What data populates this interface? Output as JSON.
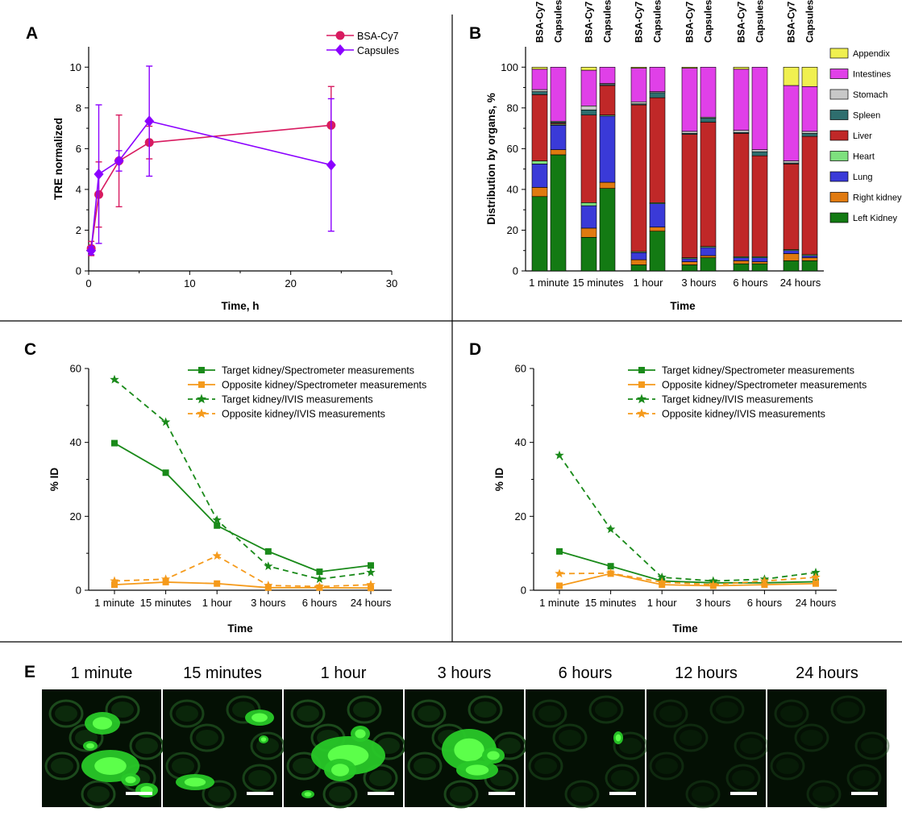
{
  "panel_letters": {
    "a": "A",
    "b": "B",
    "c": "C",
    "d": "D",
    "e": "E"
  },
  "colors": {
    "bsa": "#d81b60",
    "capsules": "#8b00ff",
    "green": "#1a8a1a",
    "orange": "#f59a1b",
    "organs": {
      "Appendix": "#f0f050",
      "Intestines": "#e040e8",
      "Stomach": "#c8c8c8",
      "Spleen": "#2e6e6e",
      "Liver": "#c02828",
      "Heart": "#7ee07e",
      "Lung": "#3a3ad8",
      "Right kidney": "#e07a10",
      "Left Kidney": "#137a13"
    }
  },
  "chart_data": [
    {
      "id": "A",
      "type": "line",
      "xlabel": "Time, h",
      "ylabel": "TRE normalized",
      "xlim": [
        0,
        30
      ],
      "ylim": [
        0,
        11
      ],
      "xticks": [
        0,
        10,
        20,
        30
      ],
      "yticks": [
        0,
        2,
        4,
        6,
        8,
        10
      ],
      "series": [
        {
          "name": "BSA-Cy7",
          "x": [
            0.25,
            1,
            3,
            6,
            24
          ],
          "y": [
            1.1,
            3.75,
            5.4,
            6.3,
            7.15
          ],
          "err": [
            0.35,
            1.6,
            2.25,
            0.8,
            1.9
          ]
        },
        {
          "name": "Capsules",
          "x": [
            0.25,
            1,
            3,
            6,
            24
          ],
          "y": [
            1.0,
            4.75,
            5.4,
            7.35,
            5.2
          ],
          "err": [
            0.2,
            3.4,
            0.5,
            2.7,
            3.25
          ]
        }
      ]
    },
    {
      "id": "B",
      "type": "bar",
      "xlabel": "Time",
      "ylabel": "Distribution by organs, %",
      "ylim": [
        0,
        110
      ],
      "yticks": [
        0,
        20,
        40,
        60,
        80,
        100
      ],
      "groups": [
        "1 minute",
        "15 minutes",
        "1 hour",
        "3 hours",
        "6 hours",
        "24 hours"
      ],
      "bar_labels": [
        "BSA-Cy7",
        "Capsules"
      ],
      "organs": [
        "Left Kidney",
        "Right kidney",
        "Lung",
        "Heart",
        "Liver",
        "Spleen",
        "Stomach",
        "Intestines",
        "Appendix"
      ],
      "legend_order": [
        "Appendix",
        "Intestines",
        "Stomach",
        "Spleen",
        "Liver",
        "Heart",
        "Lung",
        "Right kidney",
        "Left Kidney"
      ],
      "stacks": [
        [
          [
            36.5,
            4.5,
            11.5,
            1.5,
            32.5,
            1.5,
            1.0,
            10.0,
            1.0
          ],
          [
            57.0,
            2.5,
            12.0,
            0.5,
            0.5,
            0.5,
            0.5,
            26.5,
            0.0
          ]
        ],
        [
          [
            16.5,
            4.5,
            11.0,
            1.5,
            43.0,
            2.5,
            2.0,
            17.5,
            1.5
          ],
          [
            40.5,
            3.0,
            32.5,
            0.5,
            14.5,
            0.5,
            0.5,
            8.0,
            0.0
          ]
        ],
        [
          [
            3.0,
            2.5,
            3.5,
            0.5,
            72.0,
            0.5,
            1.0,
            16.5,
            0.5
          ],
          [
            19.5,
            2.0,
            11.5,
            0.5,
            51.5,
            2.5,
            0.5,
            12.0,
            0.0
          ]
        ],
        [
          [
            3.0,
            1.5,
            1.5,
            0.5,
            60.5,
            0.5,
            1.0,
            31.0,
            0.5
          ],
          [
            6.5,
            1.0,
            4.0,
            0.5,
            61.0,
            2.0,
            0.5,
            24.5,
            0.0
          ]
        ],
        [
          [
            3.5,
            1.5,
            1.5,
            0.5,
            60.5,
            0.5,
            1.0,
            30.0,
            1.0
          ],
          [
            3.5,
            1.0,
            2.0,
            0.5,
            49.5,
            2.0,
            1.0,
            40.5,
            0.0
          ]
        ],
        [
          [
            5.0,
            3.5,
            1.5,
            0.5,
            42.0,
            0.5,
            1.0,
            37.0,
            9.0
          ],
          [
            5.0,
            1.5,
            1.0,
            0.5,
            58.0,
            1.5,
            1.0,
            22.0,
            9.5
          ]
        ]
      ]
    },
    {
      "id": "C",
      "type": "line",
      "xlabel": "Time",
      "ylabel": "% ID",
      "ylim": [
        0,
        60
      ],
      "yticks": [
        0,
        20,
        40,
        60
      ],
      "categories": [
        "1 minute",
        "15 minutes",
        "1 hour",
        "3 hours",
        "6 hours",
        "24 hours"
      ],
      "series": [
        {
          "name": "Target kidney/Spectrometer measurements",
          "values": [
            39.8,
            31.8,
            17.5,
            10.5,
            5.0,
            6.7
          ]
        },
        {
          "name": "Opposite kidney/Spectrometer measurements",
          "values": [
            1.5,
            2.2,
            1.8,
            0.7,
            0.7,
            0.6
          ]
        },
        {
          "name": "Target kidney/IVIS measurements",
          "values": [
            57.0,
            45.5,
            19.0,
            6.5,
            3.0,
            4.8
          ]
        },
        {
          "name": "Opposite kidney/IVIS measurements",
          "values": [
            2.5,
            3.0,
            9.3,
            1.3,
            1.0,
            1.5
          ]
        }
      ]
    },
    {
      "id": "D",
      "type": "line",
      "xlabel": "Time",
      "ylabel": "% ID",
      "ylim": [
        0,
        60
      ],
      "yticks": [
        0,
        20,
        40,
        60
      ],
      "categories": [
        "1 minute",
        "15 minutes",
        "1 hour",
        "3 hours",
        "6 hours",
        "24 hours"
      ],
      "series": [
        {
          "name": "Target kidney/Spectrometer measurements",
          "values": [
            10.5,
            6.5,
            2.5,
            2.0,
            2.0,
            2.3
          ]
        },
        {
          "name": "Opposite kidney/Spectrometer measurements",
          "values": [
            1.2,
            4.5,
            1.5,
            1.2,
            1.5,
            1.8
          ]
        },
        {
          "name": "Target kidney/IVIS measurements",
          "values": [
            36.5,
            16.5,
            3.5,
            2.5,
            3.0,
            4.8
          ]
        },
        {
          "name": "Opposite kidney/IVIS measurements",
          "values": [
            4.5,
            4.6,
            2.2,
            1.5,
            2.5,
            3.5
          ]
        }
      ]
    }
  ],
  "microscopy": {
    "titles": [
      "1 minute",
      "15 minutes",
      "1 hour",
      "3 hours",
      "6 hours",
      "12 hours",
      "24 hours"
    ]
  }
}
